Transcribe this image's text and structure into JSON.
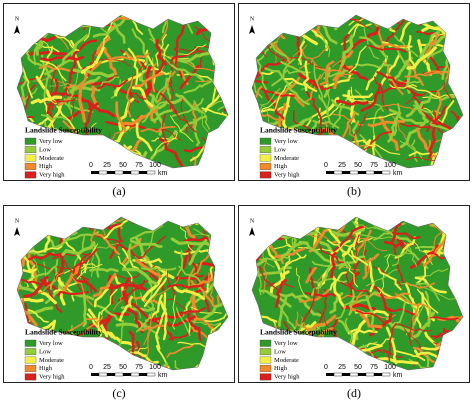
{
  "north": "N",
  "legend": {
    "title": "Landslide Susceptibility",
    "items": [
      {
        "label": "Very low",
        "color": "#2f9a2a"
      },
      {
        "label": "Low",
        "color": "#94cc3a"
      },
      {
        "label": "Moderate",
        "color": "#f3ef45"
      },
      {
        "label": "High",
        "color": "#f08a2c"
      },
      {
        "label": "Very high",
        "color": "#dc1f1c"
      }
    ]
  },
  "scale_bar": {
    "ticks": [
      0,
      25,
      50,
      75,
      100
    ],
    "unit": "km"
  },
  "panels": [
    {
      "caption": "(a)"
    },
    {
      "caption": "(b)"
    },
    {
      "caption": "(c)"
    },
    {
      "caption": "(d)"
    }
  ]
}
